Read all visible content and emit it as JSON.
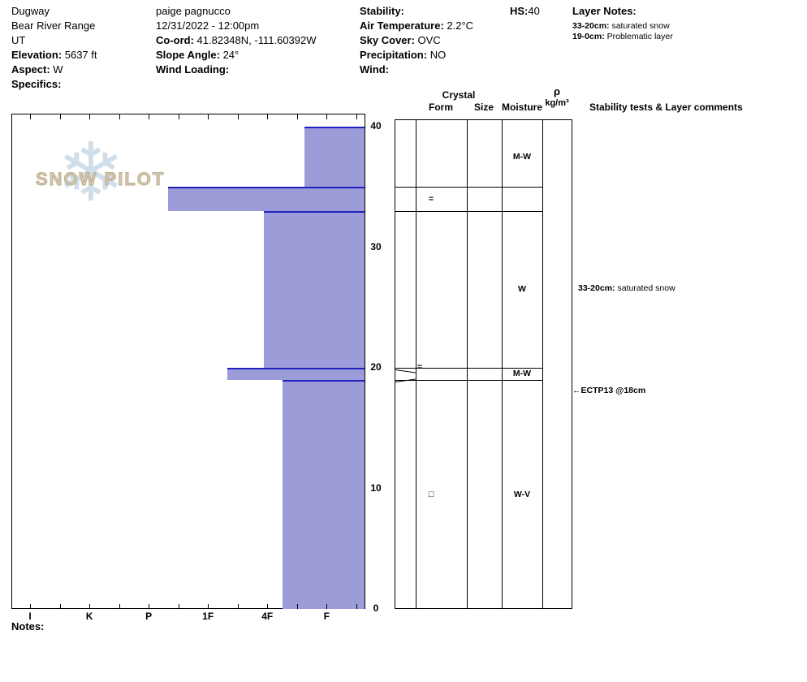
{
  "header": {
    "col1": {
      "site": "Dugway",
      "range": "Bear River Range",
      "state": "UT",
      "elevation_label": "Elevation:",
      "elevation_value": " 5637 ft",
      "aspect_label": "Aspect:",
      "aspect_value": " W",
      "specifics_label": "Specifics:"
    },
    "col2": {
      "observer": "paige pagnucco",
      "datetime": "12/31/2022 - 12:00pm",
      "coord_label": "Co-ord:",
      "coord_value": " 41.82348N, -111.60392W",
      "slope_label": "Slope Angle:",
      "slope_value": " 24°",
      "wind_loading_label": "Wind Loading:"
    },
    "col3": {
      "stability_label": "Stability:",
      "airtemp_label": "Air Temperature:",
      "airtemp_value": " 2.2°C",
      "sky_label": "Sky Cover:",
      "sky_value": " OVC",
      "precip_label": "Precipitation:",
      "precip_value": " NO",
      "wind_label": "Wind:"
    },
    "hs": {
      "label": "HS:",
      "value": "40"
    },
    "layer_notes": {
      "title": "Layer Notes:",
      "items": [
        {
          "range": "33-20cm:",
          "text": " saturated snow"
        },
        {
          "range": "19-0cm:",
          "text": " Problematic layer"
        }
      ]
    }
  },
  "watermark": {
    "text": "SNOW PILOT",
    "icon": "snowflake-icon"
  },
  "grid": {
    "headers": {
      "crystal": "Crystal",
      "form": "Form",
      "size": "Size",
      "moisture": "Moisture",
      "density_symbol": "ρ",
      "density_units": "kg/m³",
      "comments": "Stability tests & Layer comments"
    }
  },
  "chart_data": {
    "type": "bar",
    "subtype": "snow-hardness-profile",
    "title": "Snowpit hardness profile",
    "hardness_categories": [
      "I",
      "K",
      "P",
      "1F",
      "4F",
      "F"
    ],
    "depth_ticks": [
      0,
      10,
      20,
      30,
      40
    ],
    "depth_range_cm": [
      0,
      40
    ],
    "total_depth_hs_cm": 40,
    "bar_color": "#9c9cd8",
    "bar_top_line_color": "#2121bd",
    "layers": [
      {
        "top_cm": 40,
        "bottom_cm": 35,
        "hardness": "F+",
        "hardness_frac": 0.828,
        "form": "",
        "size": "",
        "moisture": "M-W"
      },
      {
        "top_cm": 35,
        "bottom_cm": 33,
        "hardness": "P-",
        "hardness_frac": 0.443,
        "form": "=",
        "size": "",
        "moisture": ""
      },
      {
        "top_cm": 33,
        "bottom_cm": 20,
        "hardness": "4F",
        "hardness_frac": 0.713,
        "form": "",
        "size": "",
        "moisture": "W",
        "comment": {
          "range": "33-20cm:",
          "text": "saturated snow"
        }
      },
      {
        "top_cm": 20,
        "bottom_cm": 19,
        "hardness": "1F-",
        "hardness_frac": 0.61,
        "form": "=",
        "size": "",
        "moisture": "M-W",
        "thin": true
      },
      {
        "top_cm": 19,
        "bottom_cm": 0,
        "hardness": "4F-F",
        "hardness_frac": 0.766,
        "form": "□",
        "size": "",
        "moisture": "W-V"
      }
    ],
    "tests": [
      {
        "depth_cm": 18,
        "arrow": "←",
        "label": "ECTP13 @18cm"
      }
    ]
  },
  "footer": {
    "notes_label": "Notes:"
  }
}
